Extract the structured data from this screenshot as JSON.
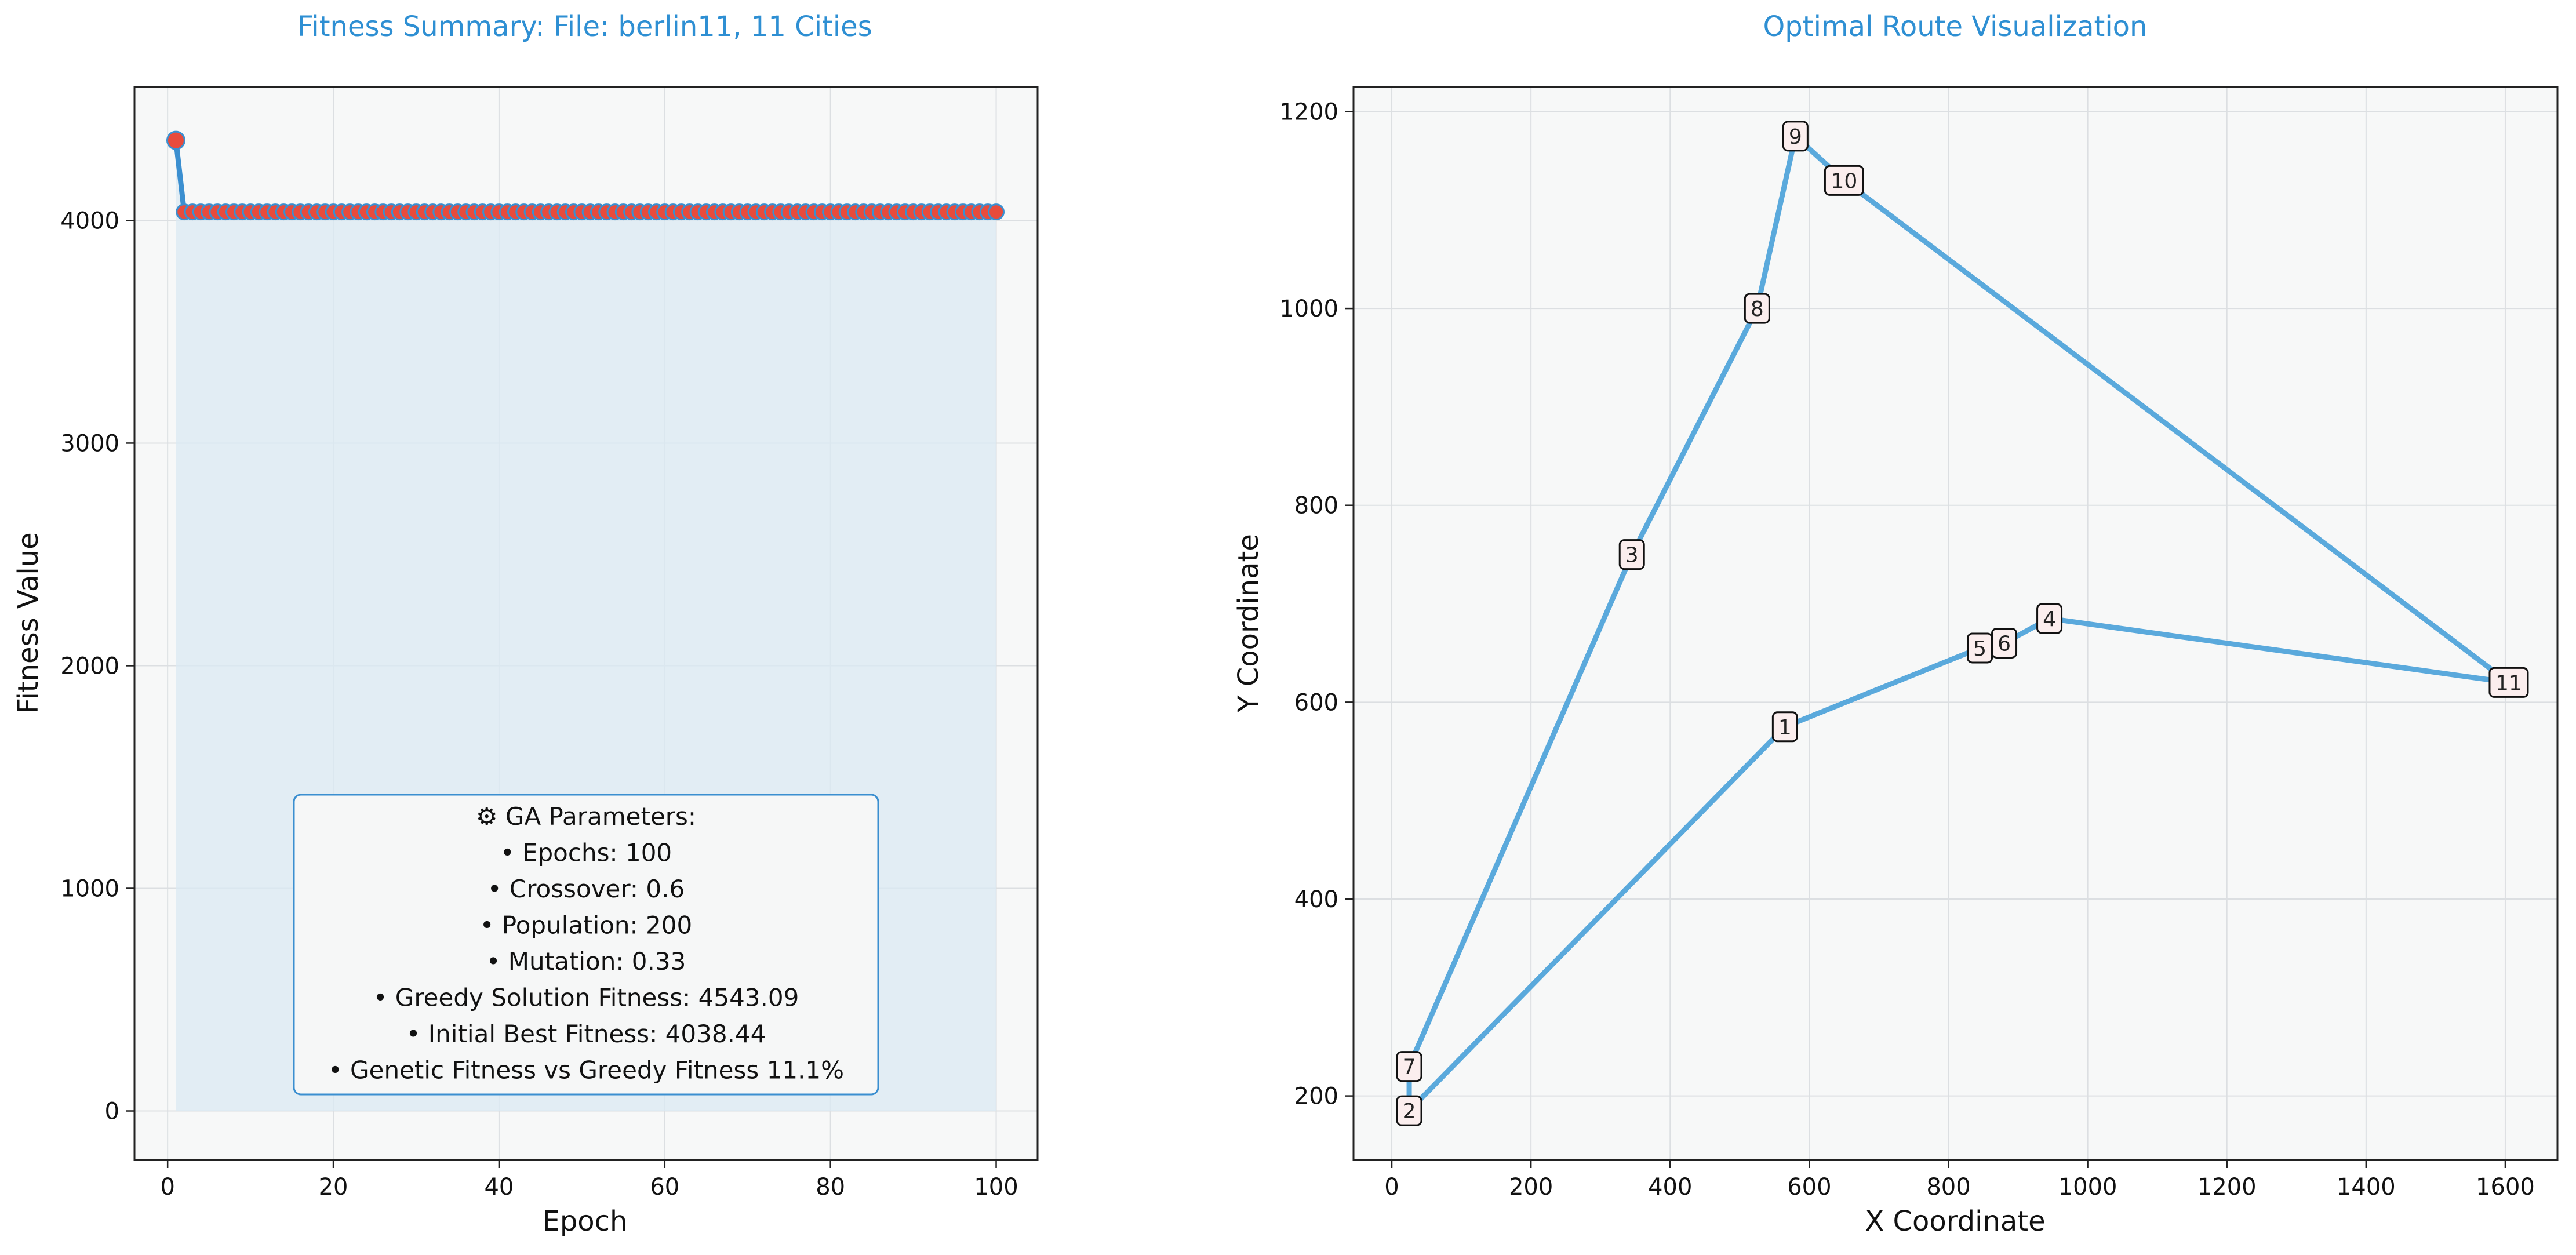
{
  "chart_data": [
    {
      "type": "line",
      "title": "Fitness Summary: File: berlin11, 11 Cities",
      "xlabel": "Epoch",
      "ylabel": "Fitness Value",
      "xlim": [
        -4,
        105
      ],
      "ylim": [
        -220,
        4600
      ],
      "xticks": [
        0,
        20,
        40,
        60,
        80,
        100
      ],
      "yticks": [
        0,
        1000,
        2000,
        3000,
        4000
      ],
      "grid": true,
      "series": [
        {
          "first": {
            "x": 1,
            "y": 4360
          },
          "rest_value": 4038.44,
          "x_start": 2,
          "x_end": 100
        }
      ],
      "params_box": {
        "lines": [
          "⚙ GA Parameters:",
          "• Epochs: 100",
          "• Crossover: 0.6",
          "• Population: 200",
          "• Mutation: 0.33",
          "• Greedy Solution Fitness: 4543.09",
          "• Initial Best Fitness: 4038.44",
          "• Genetic Fitness vs Greedy Fitness 11.1%"
        ]
      },
      "colors": {
        "line": "#3b8fd0",
        "marker": "#e84b3c",
        "fill": "#dbe9f3",
        "title": "#2e8fd3"
      }
    },
    {
      "type": "line",
      "title": "Optimal Route Visualization",
      "xlabel": "X Coordinate",
      "ylabel": "Y Coordinate",
      "xlim": [
        -55,
        1675
      ],
      "ylim": [
        135,
        1225
      ],
      "xticks": [
        0,
        200,
        400,
        600,
        800,
        1000,
        1200,
        1400,
        1600
      ],
      "yticks": [
        200,
        400,
        600,
        800,
        1000,
        1200
      ],
      "grid": true,
      "cities": [
        {
          "label": "1",
          "x": 565,
          "y": 575
        },
        {
          "label": "2",
          "x": 25,
          "y": 185
        },
        {
          "label": "3",
          "x": 345,
          "y": 750
        },
        {
          "label": "4",
          "x": 945,
          "y": 685
        },
        {
          "label": "5",
          "x": 845,
          "y": 655
        },
        {
          "label": "6",
          "x": 880,
          "y": 660
        },
        {
          "label": "7",
          "x": 25,
          "y": 230
        },
        {
          "label": "8",
          "x": 525,
          "y": 1000
        },
        {
          "label": "9",
          "x": 580,
          "y": 1175
        },
        {
          "label": "10",
          "x": 650,
          "y": 1130
        },
        {
          "label": "11",
          "x": 1605,
          "y": 620
        }
      ],
      "route": [
        "2",
        "1",
        "5",
        "6",
        "4",
        "11",
        "10",
        "9",
        "8",
        "3",
        "7",
        "2"
      ],
      "colors": {
        "line": "#5aa9dc",
        "title": "#2e8fd3"
      }
    }
  ]
}
